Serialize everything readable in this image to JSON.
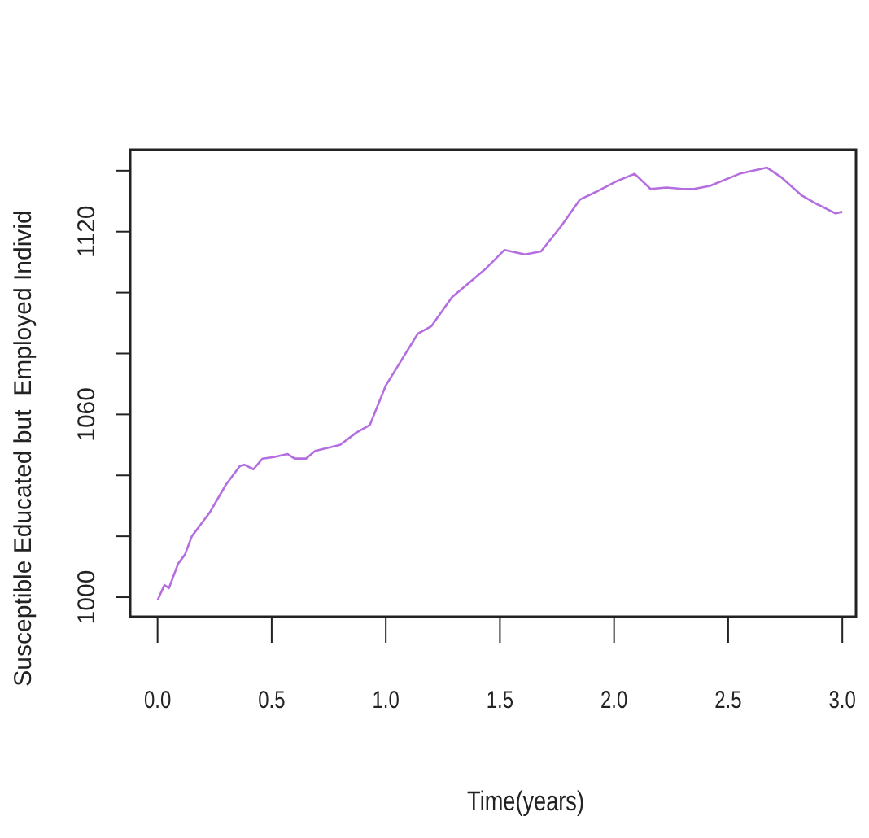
{
  "chart_data": {
    "type": "line",
    "xlabel": "Time(years)",
    "ylabel": "Susceptible Educated but  Employed Individ",
    "xlim": [
      -0.12,
      3.06
    ],
    "ylim": [
      993.6,
      1146.9
    ],
    "xticks": [
      {
        "value": 0,
        "label": "0.0"
      },
      {
        "value": 0.5,
        "label": "0.5"
      },
      {
        "value": 1,
        "label": "1.0"
      },
      {
        "value": 1.5,
        "label": "1.5"
      },
      {
        "value": 2,
        "label": "2.0"
      },
      {
        "value": 2.5,
        "label": "2.5"
      },
      {
        "value": 3,
        "label": "3.0"
      }
    ],
    "yticks": [
      1000,
      {
        "value": 1020,
        "label": null
      },
      {
        "value": 1040,
        "label": null
      },
      1060,
      {
        "value": 1080,
        "label": null
      },
      {
        "value": 1100,
        "label": null
      },
      1120,
      {
        "value": 1140,
        "label": null
      }
    ],
    "series": [
      {
        "color": "#b46ee0",
        "x": [
          0,
          0.03,
          0.05,
          0.09,
          0.12,
          0.15,
          0.19,
          0.23,
          0.3,
          0.36,
          0.38,
          0.42,
          0.46,
          0.51,
          0.57,
          0.6,
          0.65,
          0.69,
          0.8,
          0.87,
          0.93,
          1.0,
          1.14,
          1.2,
          1.29,
          1.44,
          1.52,
          1.61,
          1.68,
          1.77,
          1.85,
          1.92,
          2.01,
          2.09,
          2.16,
          2.23,
          2.3,
          2.35,
          2.42,
          2.55,
          2.67,
          2.73,
          2.82,
          2.89,
          2.97,
          3.0
        ],
        "values": [
          999,
          1004,
          1003,
          1011,
          1014,
          1020,
          1024,
          1028,
          1037,
          1043,
          1043.5,
          1042,
          1045.5,
          1046,
          1047,
          1045.5,
          1045.5,
          1048,
          1050,
          1054,
          1056.5,
          1069.5,
          1086.5,
          1089,
          1098.5,
          1108,
          1114,
          1112.5,
          1113.5,
          1122,
          1130.5,
          1133,
          1136.5,
          1139,
          1134,
          1134.5,
          1134,
          1134,
          1135,
          1139,
          1141,
          1138,
          1132,
          1129,
          1126,
          1126.5
        ]
      }
    ]
  }
}
